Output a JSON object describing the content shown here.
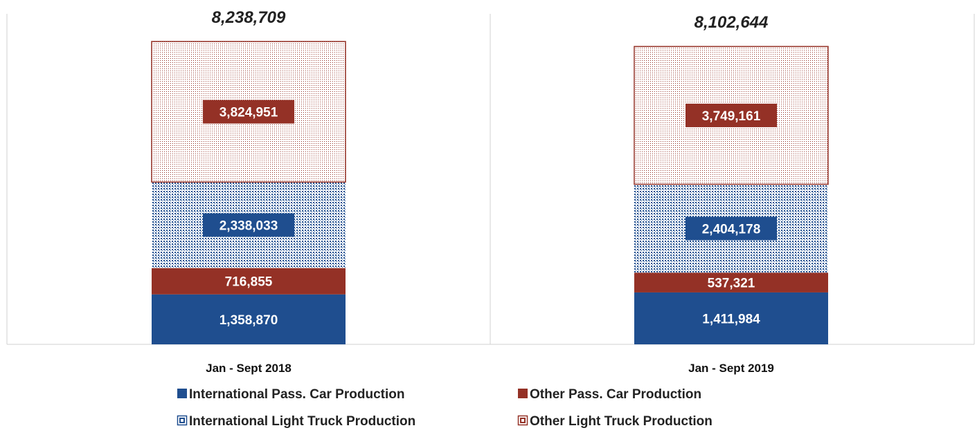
{
  "colors": {
    "international_pass_car": "#1f4e8f",
    "other_pass_car": "#943126",
    "international_light_truck_dots": "#1f4e8f",
    "other_light_truck_dots": "#943126",
    "axis_line": "#d0d0d0"
  },
  "chart_data": {
    "type": "bar",
    "stacked": true,
    "title": "",
    "xlabel": "",
    "ylabel": "",
    "categories": [
      "Jan - Sept 2018",
      "Jan - Sept 2019"
    ],
    "totals": [
      "8,238,709",
      "8,102,644"
    ],
    "total_values": [
      8238709,
      8102644
    ],
    "series": [
      {
        "name": "International Pass. Car Production",
        "key": "international_pass_car",
        "values": [
          1358870,
          1411984
        ],
        "labels": [
          "1,358,870",
          "1,411,984"
        ]
      },
      {
        "name": "Other Pass. Car Production",
        "key": "other_pass_car",
        "values": [
          716855,
          537321
        ],
        "labels": [
          "716,855",
          "537,321"
        ]
      },
      {
        "name": "International Light Truck Production",
        "key": "international_light_truck",
        "values": [
          2338033,
          2404178
        ],
        "labels": [
          "2,338,033",
          "2,404,178"
        ]
      },
      {
        "name": "Other Light Truck Production",
        "key": "other_light_truck",
        "values": [
          3824951,
          3749161
        ],
        "labels": [
          "3,824,951",
          "3,749,161"
        ]
      }
    ],
    "legend_position": "bottom",
    "grid": false
  }
}
